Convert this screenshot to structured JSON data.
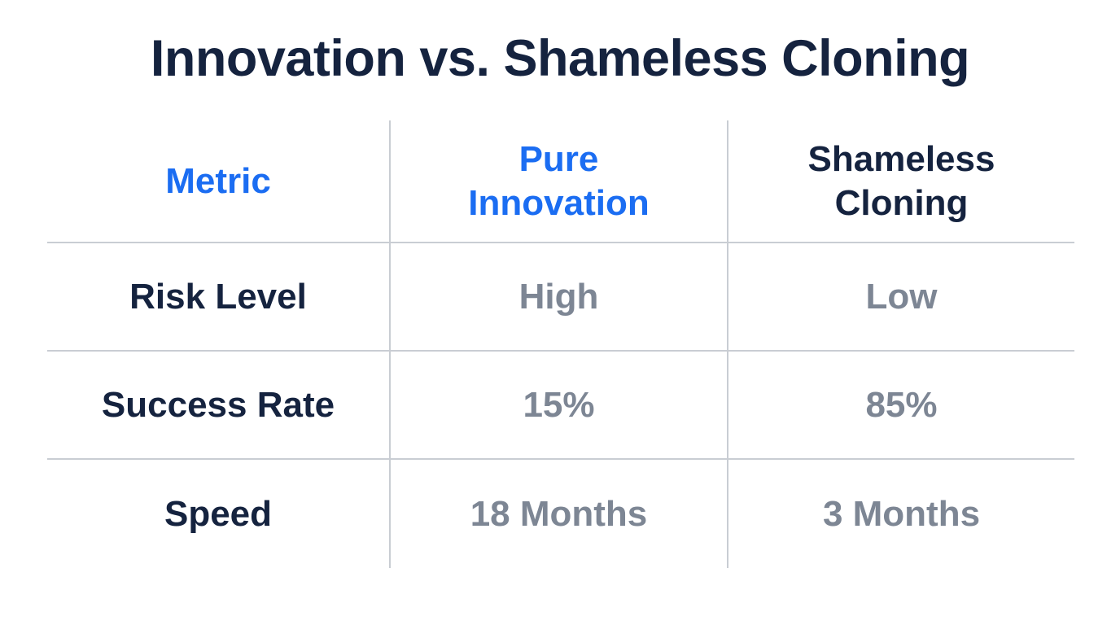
{
  "page": {
    "title": "Innovation vs. Shameless Cloning"
  },
  "colors": {
    "title_navy": "#15233F",
    "header_blue": "#1B6DF2",
    "value_gray": "#7D8694",
    "grid_line": "#C9CDD3",
    "background": "#FFFFFF"
  },
  "table": {
    "columns": [
      {
        "id": "metric",
        "label": "Metric"
      },
      {
        "id": "pure-innovation",
        "label": "Pure Innovation"
      },
      {
        "id": "shameless-cloning",
        "label": "Shameless Cloning"
      }
    ],
    "rows": [
      {
        "cells": [
          "Risk Level",
          "High",
          "Low"
        ]
      },
      {
        "cells": [
          "Success Rate",
          "15%",
          "85%"
        ]
      },
      {
        "cells": [
          "Speed",
          "18 Months",
          "3 Months"
        ]
      }
    ]
  },
  "chart_data": {
    "type": "table",
    "title": "Innovation vs. Shameless Cloning",
    "columns": [
      "Metric",
      "Pure Innovation",
      "Shameless Cloning"
    ],
    "rows": [
      [
        "Risk Level",
        "High",
        "Low"
      ],
      [
        "Success Rate",
        "15%",
        "85%"
      ],
      [
        "Speed",
        "18 Months",
        "3 Months"
      ]
    ],
    "notes": {
      "success_rate_pure_innovation_pct": 15,
      "success_rate_shameless_cloning_pct": 85,
      "speed_pure_innovation_months": 18,
      "speed_shameless_cloning_months": 3
    },
    "layout_hints": {
      "grid": "light vertical and horizontal separators, no outer border",
      "header_colors": [
        "blue",
        "blue",
        "navy"
      ],
      "value_color": "gray"
    }
  }
}
